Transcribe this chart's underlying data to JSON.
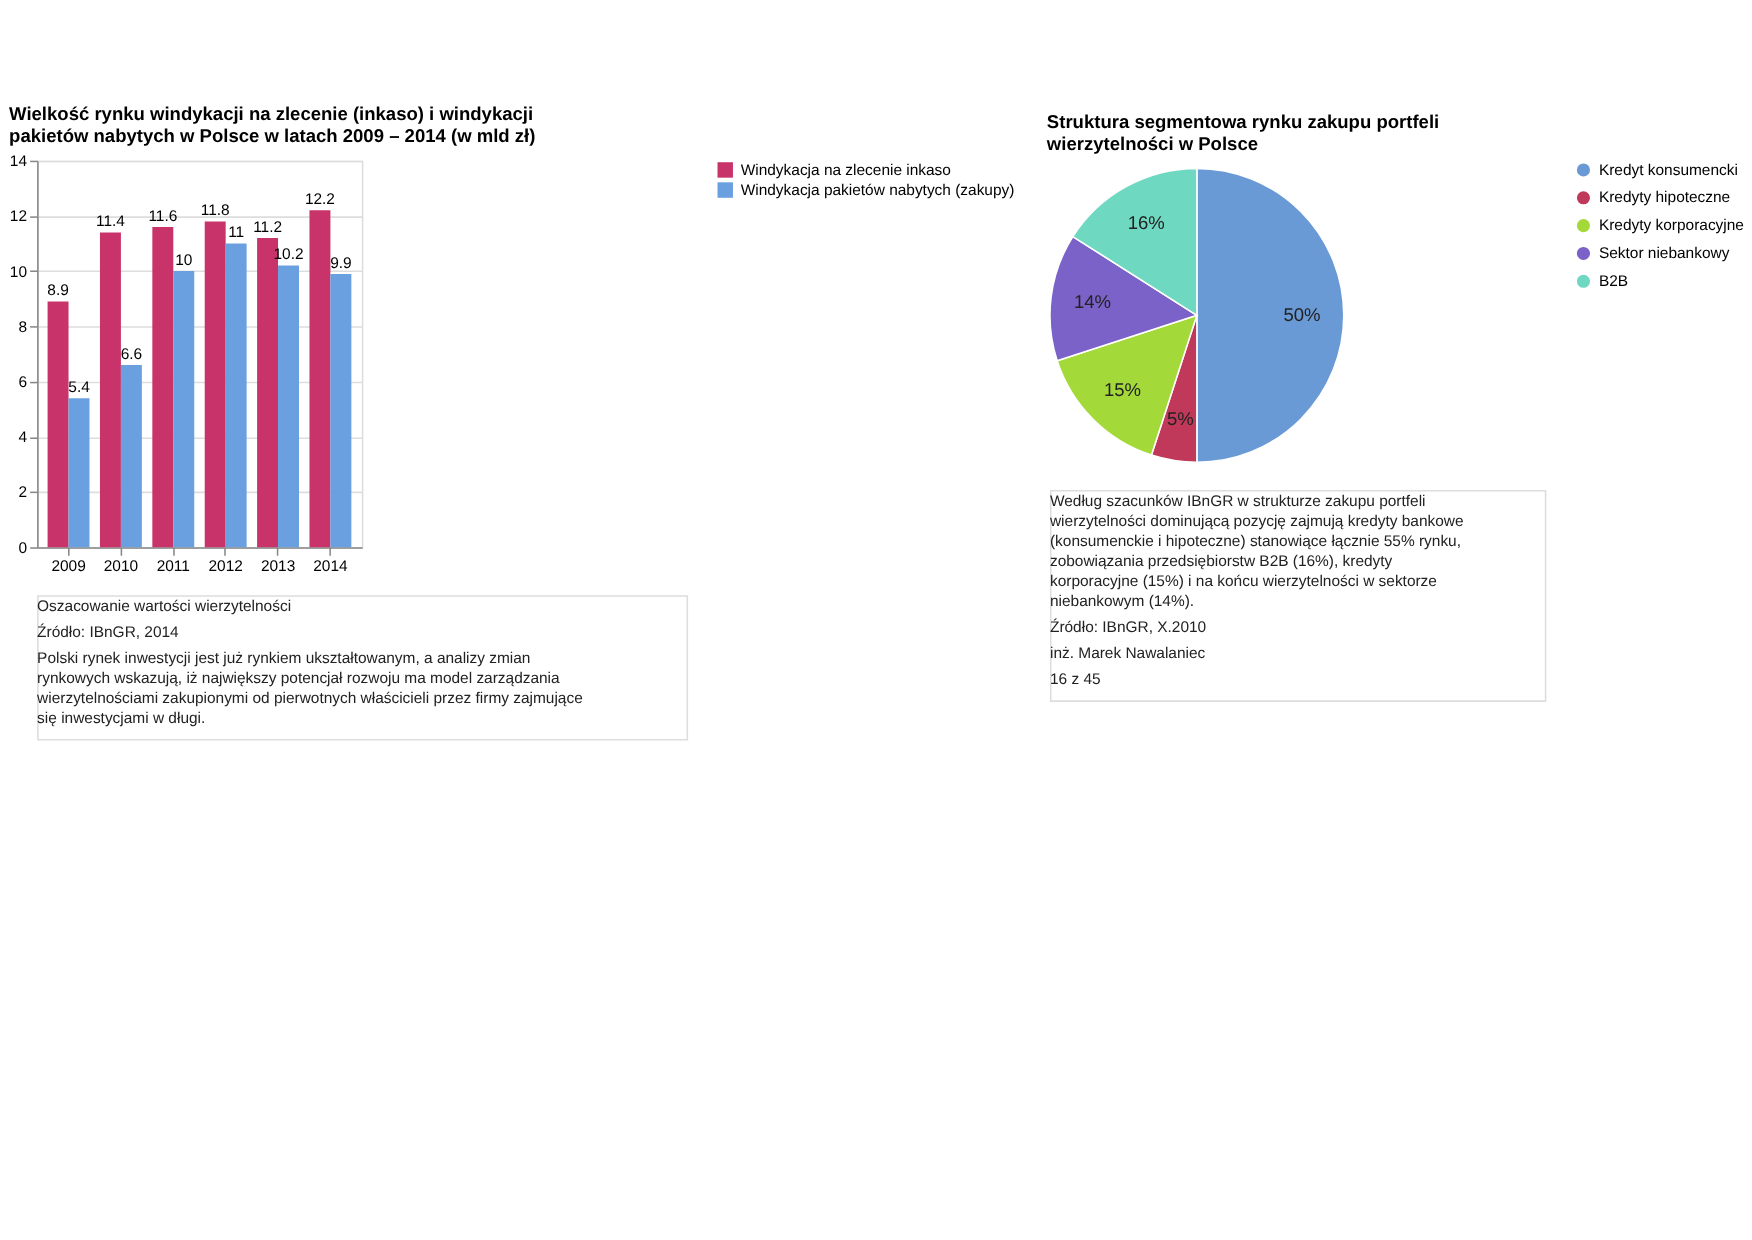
{
  "chart_data": [
    {
      "type": "bar",
      "title": "Wielkość rynku windykacji na zlecenie (inkaso) i windykacji pakietów nabytych w Polsce w latach 2009 – 2014 (w mld zł)",
      "categories": [
        "2009",
        "2010",
        "2011",
        "2012",
        "2013",
        "2014"
      ],
      "series": [
        {
          "name": "Windykacja na zlecenie inkaso",
          "color": "#c8336a",
          "values": [
            8.9,
            11.4,
            11.6,
            11.8,
            11.2,
            12.2
          ]
        },
        {
          "name": "Windykacja pakietów nabytych (zakupy)",
          "color": "#6a9fe0",
          "values": [
            5.4,
            6.6,
            10,
            11,
            10.2,
            9.9
          ]
        }
      ],
      "ylim": [
        0,
        14
      ],
      "yticks": [
        0,
        2,
        4,
        6,
        8,
        10,
        12,
        14
      ],
      "grid": "y",
      "legend": "right",
      "data_labels": true,
      "annotations": [
        "Oszacowanie wartości wierzytelności",
        "Źródło: IBnGR, 2014",
        "Polski rynek inwestycji jest już rynkiem ukształtowanym, a analizy zmian rynkowych wskazują, iż największy potencjał rozwoju ma model zarządzania wierzytelnościami zakupionymi od pierwotnych właścicieli przez firmy zajmujące się inwestycjami w długi."
      ]
    },
    {
      "type": "pie",
      "title": "Struktura segmentowa rynku zakupu portfeli wierzytelności w Polsce",
      "categories": [
        "Kredyt konsumencki",
        "Kredyty hipoteczne",
        "Kredyty korporacyjne",
        "Sektor niebankowy",
        "B2B"
      ],
      "values": [
        50,
        5,
        15,
        14,
        16
      ],
      "colors": [
        "#6a9ad6",
        "#c0395a",
        "#a4d93a",
        "#7b62c9",
        "#6fd8c0"
      ],
      "value_labels": [
        "50%",
        "5%",
        "15%",
        "14%",
        "16%"
      ],
      "legend": "right",
      "annotations": [
        "Według szacunków IBnGR w strukturze zakupu portfeli wierzytelności dominującą pozycję zajmują kredyty bankowe (konsumenckie i hipoteczne) stanowiące łącznie 55% rynku, zobowiązania przedsiębiorstw B2B (16%), kredyty korporacyjne (15%) i na końcu wierzytelności w sektorze niebankowym (14%).",
        "Źródło: IBnGR, X.2010",
        "inż. Marek Nawalaniec",
        "16 z 45"
      ]
    }
  ]
}
